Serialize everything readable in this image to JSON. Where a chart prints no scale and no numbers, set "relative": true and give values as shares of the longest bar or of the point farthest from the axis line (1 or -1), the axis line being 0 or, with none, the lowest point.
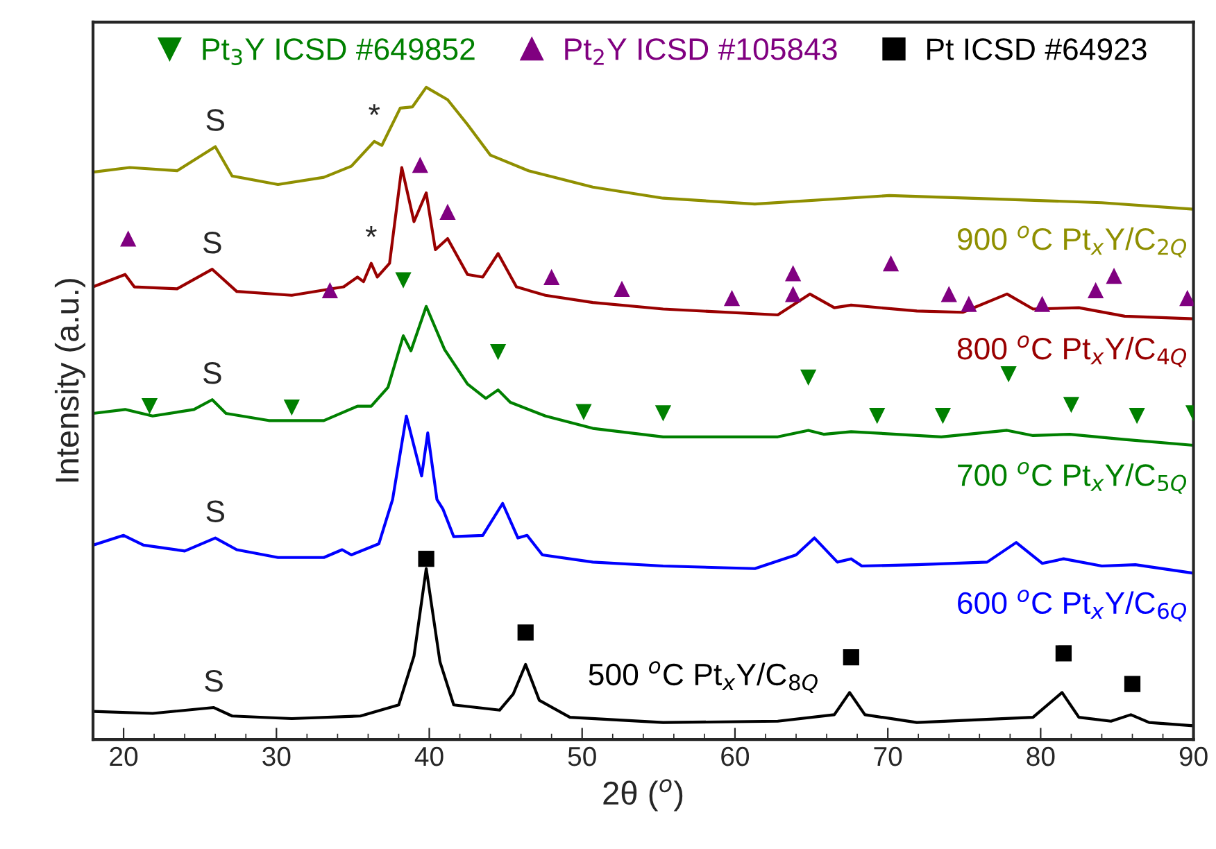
{
  "chart_data": {
    "type": "line",
    "relative": true,
    "xlabel": "2θ ($^{o}$)",
    "ylabel": "Intensity (a.u.)",
    "xlim": [
      18,
      90
    ],
    "xticks": [
      20,
      30,
      40,
      50,
      60,
      70,
      80,
      90
    ],
    "grid": false,
    "legend": "top",
    "line_style": "solid",
    "series": [
      {
        "name": "900 $^{o}$C Pt$_{x}$Y/C$_{2Q}$",
        "color": "#8f8f00",
        "x": [
          18,
          20.4,
          23.5,
          26.0,
          27.1,
          30.1,
          33.1,
          34.9,
          36.4,
          36.9,
          38.1,
          38.9,
          39.8,
          41.2,
          42.5,
          44.0,
          46.5,
          50.7,
          55.3,
          61.3,
          70.1,
          78.0,
          84.0,
          90
        ],
        "values": [
          0.87,
          0.877,
          0.872,
          0.909,
          0.864,
          0.851,
          0.862,
          0.879,
          0.917,
          0.911,
          0.968,
          0.97,
          1.0,
          0.981,
          0.943,
          0.896,
          0.872,
          0.847,
          0.83,
          0.821,
          0.834,
          0.828,
          0.823,
          0.813
        ]
      },
      {
        "name": "800 $^{o}$C Pt$_{x}$Y/C$_{4Q}$",
        "color": "#990000",
        "x": [
          18,
          20.1,
          20.7,
          23.5,
          25.8,
          27.4,
          31.0,
          34.4,
          35.3,
          35.7,
          36.2,
          36.6,
          37.4,
          38.2,
          39.0,
          39.8,
          40.4,
          41.2,
          42.5,
          43.5,
          44.5,
          45.7,
          47.6,
          50.7,
          55.3,
          62.8,
          64.9,
          66.5,
          67.6,
          71.9,
          74.9,
          77.8,
          79.5,
          82.5,
          85.5,
          90
        ],
        "values": [
          0.694,
          0.713,
          0.694,
          0.691,
          0.721,
          0.687,
          0.681,
          0.694,
          0.709,
          0.702,
          0.73,
          0.709,
          0.73,
          0.877,
          0.794,
          0.838,
          0.751,
          0.768,
          0.713,
          0.709,
          0.745,
          0.694,
          0.681,
          0.67,
          0.66,
          0.651,
          0.683,
          0.662,
          0.666,
          0.657,
          0.655,
          0.683,
          0.66,
          0.662,
          0.649,
          0.645
        ]
      },
      {
        "name": "700 $^{o}$C Pt$_{x}$Y/C$_{5Q}$",
        "color": "#008000",
        "x": [
          18,
          20.1,
          21.9,
          24.6,
          25.8,
          26.7,
          29.5,
          33.1,
          35.3,
          36.2,
          37.3,
          38.3,
          38.8,
          39.8,
          41.0,
          42.5,
          43.7,
          44.5,
          45.3,
          47.6,
          50.7,
          55.3,
          62.8,
          64.8,
          65.8,
          67.6,
          73.5,
          77.8,
          79.5,
          81.9,
          85.5,
          90
        ],
        "values": [
          0.5,
          0.506,
          0.496,
          0.506,
          0.521,
          0.5,
          0.489,
          0.489,
          0.511,
          0.511,
          0.54,
          0.619,
          0.596,
          0.664,
          0.598,
          0.545,
          0.523,
          0.536,
          0.517,
          0.496,
          0.477,
          0.464,
          0.464,
          0.474,
          0.468,
          0.472,
          0.464,
          0.474,
          0.466,
          0.468,
          0.46,
          0.451
        ]
      },
      {
        "name": "600 $^{o}$C Pt$_{x}$Y/C$_{6Q}$",
        "color": "#0000ff",
        "x": [
          18,
          20.0,
          21.3,
          24.0,
          26.0,
          27.4,
          30.1,
          33.1,
          34.3,
          34.9,
          36.7,
          37.6,
          38.5,
          39.5,
          39.9,
          40.5,
          40.9,
          41.6,
          43.5,
          44.8,
          45.8,
          46.4,
          47.4,
          50.7,
          55.3,
          61.3,
          64.0,
          65.2,
          66.7,
          67.6,
          68.3,
          71.9,
          76.5,
          78.4,
          80.1,
          81.5,
          84.0,
          86.2,
          90
        ],
        "values": [
          0.298,
          0.313,
          0.298,
          0.289,
          0.309,
          0.291,
          0.279,
          0.279,
          0.291,
          0.283,
          0.3,
          0.368,
          0.496,
          0.404,
          0.47,
          0.368,
          0.353,
          0.311,
          0.313,
          0.362,
          0.309,
          0.313,
          0.283,
          0.272,
          0.266,
          0.262,
          0.283,
          0.309,
          0.272,
          0.277,
          0.266,
          0.268,
          0.272,
          0.302,
          0.27,
          0.277,
          0.266,
          0.268,
          0.255
        ]
      },
      {
        "name": "500 $^{o}$C Pt$_{x}$Y/C$_{8Q}$",
        "color": "#000000",
        "x": [
          18,
          21.9,
          25.9,
          27.1,
          31.0,
          35.5,
          38.0,
          39.0,
          39.8,
          40.7,
          41.6,
          44.6,
          45.5,
          46.3,
          47.2,
          49.2,
          55.3,
          62.8,
          66.5,
          67.5,
          68.5,
          71.9,
          79.5,
          81.4,
          82.5,
          84.6,
          85.9,
          87.1,
          90
        ],
        "values": [
          0.043,
          0.04,
          0.049,
          0.036,
          0.032,
          0.036,
          0.053,
          0.128,
          0.262,
          0.119,
          0.053,
          0.045,
          0.07,
          0.115,
          0.06,
          0.034,
          0.026,
          0.028,
          0.038,
          0.072,
          0.038,
          0.026,
          0.034,
          0.072,
          0.034,
          0.028,
          0.038,
          0.026,
          0.021
        ]
      },
      {
        "name": "Pt$_{3}$Y ICSD #649852",
        "type": "scatter",
        "marker": "triangle_down",
        "color": "#008000",
        "x": [
          21.7,
          31.0,
          38.3,
          44.5,
          50.1,
          55.3,
          64.8,
          69.3,
          73.6,
          77.9,
          82.0,
          86.3,
          90
        ],
        "values": [
          0.511,
          0.509,
          0.704,
          0.594,
          0.502,
          0.5,
          0.555,
          0.496,
          0.496,
          0.56,
          0.513,
          0.496,
          0.5
        ]
      },
      {
        "name": "Pt$_{2}$Y ICSD #105843",
        "type": "scatter",
        "marker": "triangle",
        "color": "#800080",
        "x": [
          20.3,
          33.5,
          39.4,
          41.2,
          48.0,
          52.6,
          59.8,
          63.8,
          63.8,
          70.2,
          74.0,
          75.3,
          80.1,
          83.6,
          84.8,
          89.6
        ],
        "values": [
          0.768,
          0.689,
          0.881,
          0.809,
          0.709,
          0.691,
          0.677,
          0.715,
          0.683,
          0.73,
          0.683,
          0.668,
          0.668,
          0.689,
          0.711,
          0.677
        ]
      },
      {
        "name": "Pt ICSD #64923",
        "type": "scatter",
        "marker": "square",
        "color": "#000000",
        "x": [
          39.8,
          46.3,
          67.6,
          81.5,
          86.0
        ],
        "values": [
          0.277,
          0.164,
          0.126,
          0.132,
          0.085
        ]
      }
    ],
    "annotations": [
      {
        "text": "S",
        "x": 26.0,
        "y": 0.909
      },
      {
        "text": "S",
        "x": 25.8,
        "y": 0.721
      },
      {
        "text": "S",
        "x": 25.8,
        "y": 0.521
      },
      {
        "text": "S",
        "x": 26.0,
        "y": 0.309
      },
      {
        "text": "S",
        "x": 25.9,
        "y": 0.049
      },
      {
        "text": "*",
        "x": 36.4,
        "y": 0.917
      },
      {
        "text": "*",
        "x": 36.2,
        "y": 0.73
      }
    ]
  }
}
